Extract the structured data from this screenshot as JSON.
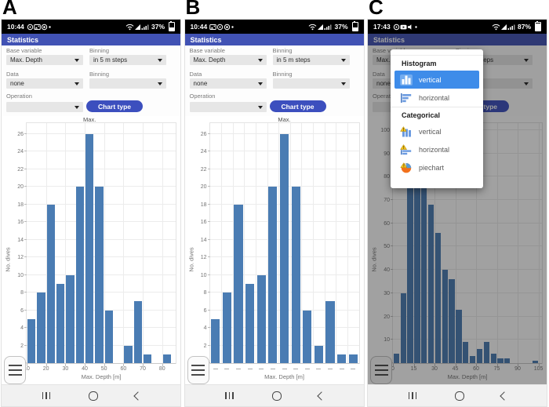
{
  "colors": {
    "app_header_bg": "#4152b4",
    "chart_type_button_bg": "#3c4fbe",
    "bar_color": "#4a7cb3",
    "popup_selected_bg": "#3e8ce9",
    "status_bar_bg": "#000000",
    "nav_bar_bg": "#f1f1f1"
  },
  "panels": [
    {
      "fig_label": "A",
      "status": {
        "time": "10:44",
        "battery_pct": "37%",
        "left_icons": [
          "whatsapp-icon",
          "gallery-icon",
          "chrome-icon",
          "dot-icon"
        ],
        "right_icons": [
          "wifi-icon",
          "signal-icon",
          "mobile-data-icon"
        ]
      },
      "header": "Statistics",
      "form": {
        "fields": [
          {
            "label": "Base variable",
            "value": "Max. Depth"
          },
          {
            "label": "Binning",
            "value": "in 5 m steps"
          },
          {
            "label": "Data",
            "value": "none"
          },
          {
            "label": "Binning",
            "value": ""
          },
          {
            "label": "Operation",
            "value": ""
          }
        ],
        "button": "Chart type"
      },
      "dimmed": false,
      "popup": null,
      "chart_ref": 0
    },
    {
      "fig_label": "B",
      "status": {
        "time": "10:44",
        "battery_pct": "37%",
        "left_icons": [
          "gallery-icon",
          "whatsapp-icon",
          "chrome-icon",
          "dot-icon"
        ],
        "right_icons": [
          "wifi-icon",
          "signal-icon",
          "mobile-data-icon"
        ]
      },
      "header": "Statistics",
      "form": {
        "fields": [
          {
            "label": "Base variable",
            "value": "Max. Depth"
          },
          {
            "label": "Binning",
            "value": "in 5 m steps"
          },
          {
            "label": "Data",
            "value": "none"
          },
          {
            "label": "Binning",
            "value": ""
          },
          {
            "label": "Operation",
            "value": ""
          }
        ],
        "button": "Chart type"
      },
      "dimmed": false,
      "popup": null,
      "chart_ref": 1
    },
    {
      "fig_label": "C",
      "status": {
        "time": "17:43",
        "battery_pct": "87%",
        "left_icons": [
          "whatsapp-icon",
          "youtube-icon",
          "speaker-icon",
          "dot-icon"
        ],
        "right_icons": [
          "wifi-icon",
          "signal-icon",
          "mobile-data-icon"
        ]
      },
      "header": "Statistics",
      "form": {
        "fields": [
          {
            "label": "Base variable",
            "value": "Max. Depth"
          },
          {
            "label": "Binning",
            "value": "in 5 m steps"
          },
          {
            "label": "Data",
            "value": "none"
          },
          {
            "label": "Binning",
            "value": ""
          },
          {
            "label": "Operation",
            "value": ""
          }
        ],
        "button": "Chart type"
      },
      "dimmed": true,
      "popup": {
        "sections": [
          {
            "title": "Histogram",
            "items": [
              {
                "label": "vertical",
                "icon": "histogram-vertical-icon",
                "selected": true
              },
              {
                "label": "horizontal",
                "icon": "histogram-horizontal-icon",
                "selected": false
              }
            ]
          },
          {
            "title": "Categorical",
            "items": [
              {
                "label": "vertical",
                "icon": "categorical-vertical-icon",
                "selected": false
              },
              {
                "label": "horizontal",
                "icon": "categorical-horizontal-icon",
                "selected": false
              },
              {
                "label": "piechart",
                "icon": "piechart-icon",
                "selected": false
              }
            ]
          }
        ]
      },
      "chart_ref": 2
    }
  ],
  "chart_data": [
    {
      "id": "panel-A-histogram",
      "type": "bar",
      "title": "",
      "ylabel": "No. dives",
      "xlabel": "Max. Depth [m]",
      "bin_start": 10,
      "bin_width": 5,
      "values": [
        5,
        8,
        18,
        9,
        10,
        20,
        26,
        20,
        6,
        0,
        2,
        7,
        1,
        0,
        1
      ],
      "x_ticks": [
        10,
        20,
        30,
        40,
        50,
        60,
        70,
        80
      ],
      "x_range": [
        10,
        87
      ],
      "y_ticks": [
        0,
        2,
        4,
        6,
        8,
        10,
        12,
        14,
        16,
        18,
        20,
        22,
        24,
        26
      ],
      "y_max": 27.2,
      "grid": true,
      "legend": false,
      "annotation": {
        "text": "Max.",
        "x_value": 42.5
      }
    },
    {
      "id": "panel-B-histogram",
      "type": "bar",
      "mode": "slots",
      "title": "",
      "ylabel": "No. dives",
      "xlabel": "Max. Depth [m]",
      "values": [
        5,
        8,
        18,
        9,
        10,
        20,
        26,
        20,
        6,
        2,
        7,
        1,
        1
      ],
      "x_tick_style": "dashes",
      "y_ticks": [
        0,
        2,
        4,
        6,
        8,
        10,
        12,
        14,
        16,
        18,
        20,
        22,
        24,
        26
      ],
      "y_max": 27.2,
      "grid": true,
      "legend": false,
      "annotation": {
        "text": "Max.",
        "slot": 6
      }
    },
    {
      "id": "panel-C-histogram",
      "type": "bar",
      "title": "",
      "ylabel": "No. dives",
      "xlabel": "Max. Depth [m]",
      "bin_start": 0,
      "bin_width": 5,
      "values": [
        4,
        30,
        92,
        100,
        98,
        68,
        56,
        40,
        36,
        23,
        9,
        3,
        6,
        9,
        4,
        2,
        2,
        0,
        0,
        0,
        1
      ],
      "x_ticks": [
        0,
        15,
        30,
        45,
        60,
        75,
        90,
        105
      ],
      "x_range": [
        0,
        107.5
      ],
      "y_ticks": [
        0,
        10,
        20,
        30,
        40,
        50,
        60,
        70,
        80,
        90,
        100
      ],
      "y_max": 103,
      "grid": true,
      "legend": false,
      "annotation": null
    }
  ]
}
